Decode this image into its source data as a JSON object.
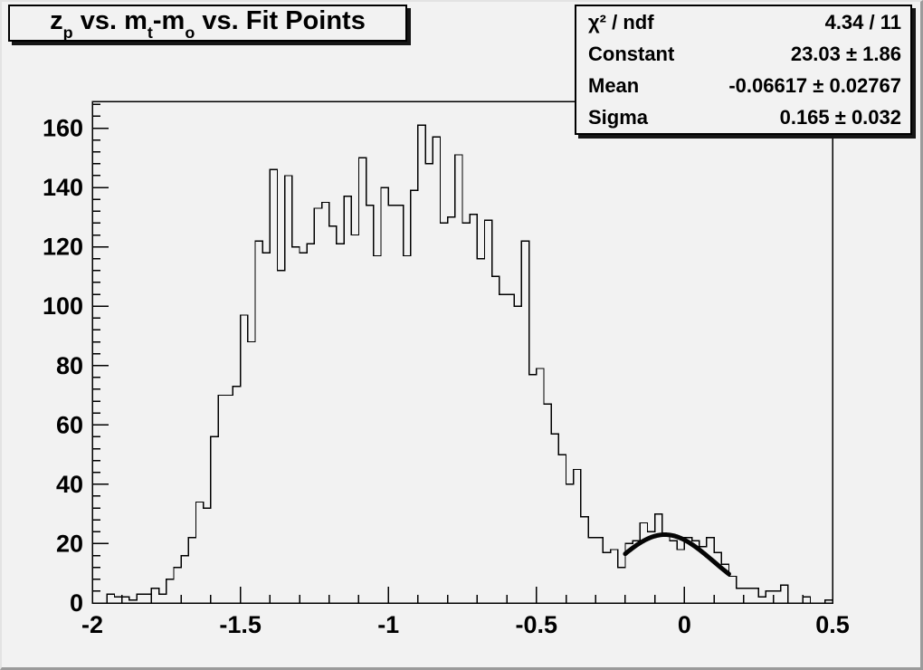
{
  "canvas": {
    "background": "#f2f2f2",
    "line_color": "#000000"
  },
  "title": {
    "text": "z_p vs. m_t-m_o vs. Fit Points",
    "parts": [
      {
        "t": "z",
        "sub": "p"
      },
      {
        "t": " vs. m",
        "sub": "t"
      },
      {
        "t": "-m",
        "sub": "o"
      },
      {
        "t": " vs. Fit Points",
        "sub": ""
      }
    ]
  },
  "stats": {
    "rows": [
      {
        "label": "χ² / ndf",
        "value": "4.34 / 11"
      },
      {
        "label": "Constant",
        "value": "23.03 ± 1.86"
      },
      {
        "label": "Mean",
        "value": "-0.06617 ± 0.02767"
      },
      {
        "label": "Sigma",
        "value": "0.165 ± 0.032"
      }
    ]
  },
  "chart_data": {
    "type": "bar",
    "style": "step-histogram",
    "title": "z_p vs. m_t-m_o vs. Fit Points",
    "xlabel": "",
    "ylabel": "",
    "xlim": [
      -2,
      0.5
    ],
    "ylim": [
      0,
      169
    ],
    "grid": false,
    "x_major_ticks": [
      -2,
      -1.5,
      -1,
      -0.5,
      0,
      0.5
    ],
    "x_tick_labels": [
      "-2",
      "-1.5",
      "-1",
      "-0.5",
      "0",
      "0.5"
    ],
    "x_minor_step": 0.1,
    "y_major_ticks": [
      0,
      20,
      40,
      60,
      80,
      100,
      120,
      140,
      160
    ],
    "y_tick_labels": [
      "0",
      "20",
      "40",
      "60",
      "80",
      "100",
      "120",
      "140",
      "160"
    ],
    "y_minor_step": 4,
    "bin_start": -2,
    "bin_width": 0.025,
    "values": [
      0,
      0,
      3,
      2,
      2,
      1,
      3,
      3,
      5,
      3,
      8,
      12,
      16,
      22,
      34,
      32,
      56,
      70,
      70,
      73,
      97,
      88,
      122,
      118,
      146,
      112,
      144,
      120,
      118,
      121,
      133,
      135,
      127,
      121,
      137,
      124,
      150,
      134,
      117,
      140,
      134,
      134,
      117,
      139,
      161,
      148,
      157,
      128,
      130,
      151,
      128,
      131,
      116,
      129,
      110,
      104,
      104,
      100,
      122,
      77,
      79,
      67,
      57,
      50,
      40,
      45,
      29,
      22,
      22,
      17,
      18,
      12,
      20,
      21,
      27,
      24,
      30,
      23,
      21,
      18,
      22,
      21,
      19,
      22,
      17,
      13,
      9,
      5,
      5,
      5,
      2,
      4,
      4,
      6,
      0,
      0,
      2,
      0,
      0,
      1
    ],
    "fit": {
      "type": "gaussian",
      "constant": 23.03,
      "mean": -0.06617,
      "sigma": 0.165,
      "range": [
        -0.2,
        0.15
      ]
    }
  }
}
